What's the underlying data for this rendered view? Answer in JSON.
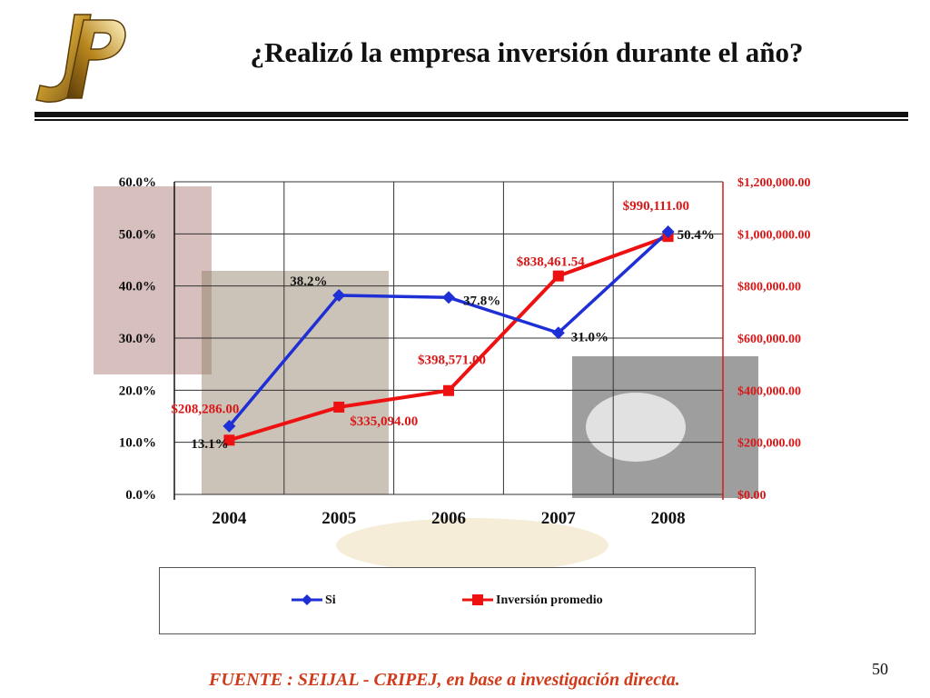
{
  "slide": {
    "title": "¿Realizó la empresa inversión durante el año?",
    "source": "FUENTE : SEIJAL - CRIPEJ, en base a investigación directa.",
    "page_number": "50"
  },
  "colors": {
    "blue_series": "#1f2fd6",
    "red_series": "#ee1111",
    "red_axis": "#d81818",
    "text": "#111111",
    "source_text": "#d13a1a"
  },
  "chart_data": {
    "type": "line",
    "categories": [
      "2004",
      "2005",
      "2006",
      "2007",
      "2008"
    ],
    "series": [
      {
        "name": "Si",
        "axis": "left",
        "marker": "diamond",
        "values": [
          13.1,
          38.2,
          37.8,
          31.0,
          50.4
        ],
        "labels": [
          "13.1%",
          "38.2%",
          "37.8%",
          "31.0%",
          "50.4%"
        ]
      },
      {
        "name": "Inversión promedio",
        "axis": "right",
        "marker": "square",
        "values": [
          208286.0,
          335094.0,
          398571.0,
          838461.54,
          990111.0
        ],
        "labels": [
          "$208,286.00",
          "$335,094.00",
          "$398,571.00",
          "$838,461.54",
          "$990,111.00"
        ]
      }
    ],
    "y_left": {
      "range": [
        0,
        60
      ],
      "ticks": [
        0,
        10,
        20,
        30,
        40,
        50,
        60
      ],
      "tick_labels": [
        "0.0%",
        "10.0%",
        "20.0%",
        "30.0%",
        "40.0%",
        "50.0%",
        "60.0%"
      ]
    },
    "y_right": {
      "range": [
        0,
        1200000
      ],
      "ticks": [
        0,
        200000,
        400000,
        600000,
        800000,
        1000000,
        1200000
      ],
      "tick_labels": [
        "$0.00",
        "$200,000.00",
        "$400,000.00",
        "$600,000.00",
        "$800,000.00",
        "$1,000,000.00",
        "$1,200,000.00"
      ]
    },
    "grid": true,
    "legend_position": "bottom"
  }
}
